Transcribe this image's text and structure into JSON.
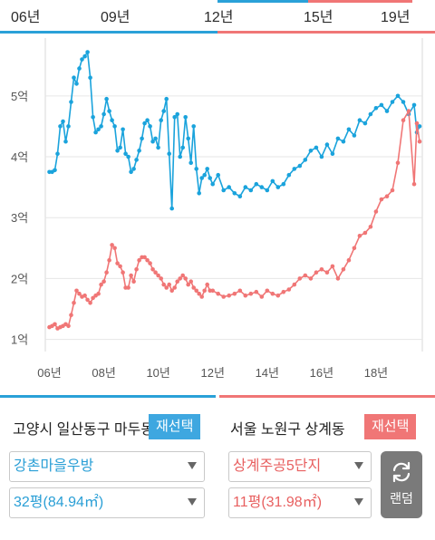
{
  "timeline": {
    "labels": [
      "06년",
      "09년",
      "12년",
      "15년",
      "19년"
    ]
  },
  "chart_data": {
    "type": "line",
    "ylim": [
      0.8,
      5.95
    ],
    "xlim": [
      2005.85,
      2019.7
    ],
    "y_ticks": [
      {
        "value": 1,
        "label": "1억"
      },
      {
        "value": 2,
        "label": "2억"
      },
      {
        "value": 3,
        "label": "3억"
      },
      {
        "value": 4,
        "label": "4억"
      },
      {
        "value": 5,
        "label": "5억"
      }
    ],
    "x_ticks": [
      {
        "value": 2006,
        "label": "06년"
      },
      {
        "value": 2008,
        "label": "08년"
      },
      {
        "value": 2010,
        "label": "10년"
      },
      {
        "value": 2012,
        "label": "12년"
      },
      {
        "value": 2014,
        "label": "14년"
      },
      {
        "value": 2016,
        "label": "16년"
      },
      {
        "value": 2018,
        "label": "18년"
      }
    ],
    "series": [
      {
        "color": "#1aa3dc",
        "x": [
          2006.0,
          2006.1,
          2006.2,
          2006.3,
          2006.4,
          2006.5,
          2006.6,
          2006.7,
          2006.8,
          2006.9,
          2007.0,
          2007.1,
          2007.2,
          2007.3,
          2007.4,
          2007.5,
          2007.6,
          2007.7,
          2007.8,
          2007.9,
          2008.0,
          2008.1,
          2008.2,
          2008.3,
          2008.4,
          2008.5,
          2008.6,
          2008.7,
          2008.8,
          2008.9,
          2009.0,
          2009.1,
          2009.2,
          2009.3,
          2009.4,
          2009.5,
          2009.6,
          2009.7,
          2009.8,
          2009.9,
          2010.0,
          2010.1,
          2010.2,
          2010.3,
          2010.4,
          2010.5,
          2010.6,
          2010.7,
          2010.8,
          2010.9,
          2011.0,
          2011.1,
          2011.2,
          2011.3,
          2011.4,
          2011.5,
          2011.6,
          2011.7,
          2011.8,
          2011.9,
          2012.0,
          2012.2,
          2012.4,
          2012.6,
          2012.8,
          2013.0,
          2013.2,
          2013.4,
          2013.6,
          2013.8,
          2014.0,
          2014.2,
          2014.4,
          2014.6,
          2014.8,
          2015.0,
          2015.2,
          2015.4,
          2015.6,
          2015.8,
          2016.0,
          2016.2,
          2016.4,
          2016.6,
          2016.8,
          2017.0,
          2017.2,
          2017.4,
          2017.6,
          2017.8,
          2018.0,
          2018.2,
          2018.4,
          2018.6,
          2018.8,
          2019.0,
          2019.2,
          2019.4,
          2019.5,
          2019.6
        ],
        "values": [
          3.75,
          3.75,
          3.78,
          4.05,
          4.5,
          4.58,
          4.25,
          4.5,
          4.9,
          5.3,
          5.2,
          5.45,
          5.6,
          5.65,
          5.72,
          5.3,
          4.65,
          4.4,
          4.45,
          4.5,
          4.7,
          4.95,
          4.75,
          4.6,
          4.5,
          4.1,
          4.15,
          4.45,
          4.05,
          4.0,
          3.75,
          3.8,
          3.95,
          4.1,
          4.3,
          4.55,
          4.6,
          4.5,
          4.25,
          4.3,
          4.15,
          4.6,
          4.75,
          4.95,
          4.05,
          3.15,
          4.65,
          4.7,
          4.0,
          4.15,
          4.65,
          4.3,
          3.9,
          4.5,
          3.8,
          3.4,
          3.65,
          3.7,
          3.8,
          3.65,
          3.55,
          3.7,
          3.45,
          3.5,
          3.4,
          3.35,
          3.5,
          3.45,
          3.55,
          3.5,
          3.45,
          3.6,
          3.5,
          3.55,
          3.7,
          3.8,
          3.85,
          3.95,
          4.1,
          4.15,
          4.0,
          4.2,
          4.05,
          4.3,
          4.25,
          4.45,
          4.35,
          4.6,
          4.55,
          4.7,
          4.8,
          4.85,
          4.75,
          4.9,
          5.0,
          4.9,
          4.7,
          4.85,
          4.4,
          4.5
        ]
      },
      {
        "color": "#f07676",
        "x": [
          2006.0,
          2006.1,
          2006.2,
          2006.3,
          2006.4,
          2006.5,
          2006.6,
          2006.7,
          2006.8,
          2006.9,
          2007.0,
          2007.1,
          2007.2,
          2007.3,
          2007.4,
          2007.5,
          2007.6,
          2007.7,
          2007.8,
          2007.9,
          2008.0,
          2008.1,
          2008.2,
          2008.3,
          2008.4,
          2008.5,
          2008.6,
          2008.7,
          2008.8,
          2008.9,
          2009.0,
          2009.1,
          2009.2,
          2009.3,
          2009.4,
          2009.5,
          2009.6,
          2009.7,
          2009.8,
          2009.9,
          2010.0,
          2010.1,
          2010.2,
          2010.3,
          2010.4,
          2010.5,
          2010.6,
          2010.7,
          2010.8,
          2010.9,
          2011.0,
          2011.1,
          2011.2,
          2011.3,
          2011.4,
          2011.5,
          2011.6,
          2011.7,
          2011.8,
          2011.9,
          2012.0,
          2012.2,
          2012.4,
          2012.6,
          2012.8,
          2013.0,
          2013.2,
          2013.4,
          2013.6,
          2013.8,
          2014.0,
          2014.2,
          2014.4,
          2014.6,
          2014.8,
          2015.0,
          2015.2,
          2015.4,
          2015.6,
          2015.8,
          2016.0,
          2016.2,
          2016.4,
          2016.6,
          2016.8,
          2017.0,
          2017.2,
          2017.4,
          2017.6,
          2017.8,
          2018.0,
          2018.2,
          2018.4,
          2018.6,
          2018.8,
          2019.0,
          2019.2,
          2019.4,
          2019.5,
          2019.6
        ],
        "values": [
          1.2,
          1.22,
          1.25,
          1.18,
          1.2,
          1.22,
          1.25,
          1.22,
          1.4,
          1.6,
          1.8,
          1.75,
          1.7,
          1.72,
          1.65,
          1.6,
          1.68,
          1.72,
          1.75,
          1.9,
          1.95,
          2.1,
          2.3,
          2.55,
          2.5,
          2.25,
          2.2,
          2.1,
          1.85,
          1.85,
          2.05,
          1.95,
          2.15,
          2.3,
          2.35,
          2.35,
          2.3,
          2.25,
          2.15,
          2.1,
          2.05,
          2.0,
          1.9,
          1.85,
          1.9,
          1.8,
          1.85,
          1.95,
          2.0,
          2.05,
          2.0,
          1.9,
          1.95,
          1.85,
          1.8,
          1.75,
          1.7,
          1.8,
          1.9,
          1.8,
          1.8,
          1.75,
          1.7,
          1.72,
          1.75,
          1.8,
          1.72,
          1.75,
          1.78,
          1.7,
          1.8,
          1.75,
          1.72,
          1.78,
          1.82,
          1.9,
          2.0,
          2.05,
          2.0,
          2.1,
          2.15,
          2.1,
          2.2,
          2.0,
          2.15,
          2.3,
          2.5,
          2.7,
          2.75,
          2.85,
          3.1,
          3.3,
          3.35,
          3.45,
          3.9,
          4.6,
          4.75,
          3.55,
          4.55,
          4.25
        ]
      }
    ]
  },
  "left_panel": {
    "region": "고양시 일산동구 마두동",
    "reselect_label": "재선택",
    "complex": "강촌마을우방",
    "size": "32평(84.94㎡)"
  },
  "right_panel": {
    "region": "서울 노원구 상계동",
    "reselect_label": "재선택",
    "complex": "상계주공5단지",
    "size": "11평(31.98㎡)",
    "random_label": "랜덤",
    "random_icon": "refresh-icon"
  }
}
